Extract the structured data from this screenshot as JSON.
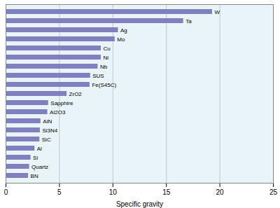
{
  "chart_data": {
    "type": "bar",
    "orientation": "horizontal",
    "xlabel": "Specific gravity",
    "categories": [
      "W",
      "Ta",
      "Ag",
      "Mo",
      "Cu",
      "Ni",
      "Nb",
      "SUS",
      "Fe(S45C)",
      "ZrO2",
      "Sapphire",
      "Al2O3",
      "AlN",
      "Si3N4",
      "SiC",
      "Al",
      "Si",
      "Quartz",
      "BN"
    ],
    "values": [
      19.3,
      16.6,
      10.5,
      10.2,
      8.9,
      8.9,
      8.6,
      7.9,
      7.85,
      5.7,
      3.98,
      3.9,
      3.26,
      3.2,
      3.16,
      2.7,
      2.33,
      2.2,
      2.1
    ],
    "color": "#8080c0",
    "xlim": [
      0,
      25
    ],
    "xticks": [
      0,
      5,
      10,
      15,
      20,
      25
    ],
    "grid": true,
    "tick_labels": "x"
  }
}
